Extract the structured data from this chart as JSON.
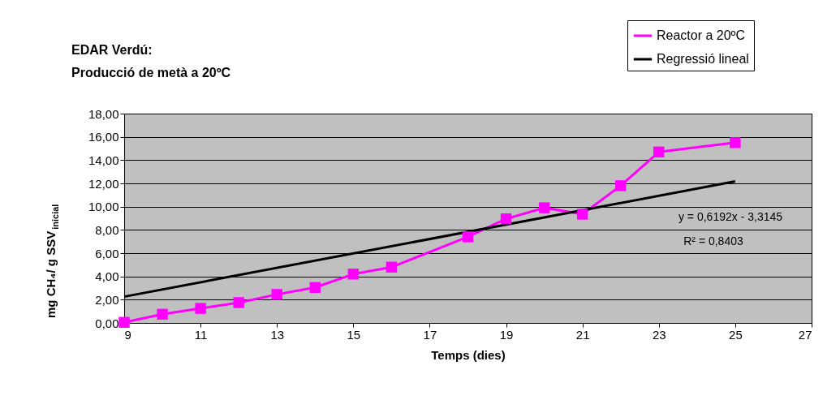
{
  "chart_data": {
    "type": "line",
    "title": [
      "EDAR Verdú:",
      "Producció de metà a 20ºC"
    ],
    "xlabel": "Temps (dies)",
    "ylabel": "mg CH₄/ g SSV$_{inicial}$",
    "x": [
      9,
      10,
      11,
      12,
      13,
      14,
      15,
      16,
      18,
      19,
      20,
      21,
      22,
      23,
      25
    ],
    "series": [
      {
        "name": "Reactor a 20ºC",
        "color": "#ff00ff",
        "marker": "square",
        "values": [
          0.05,
          0.75,
          1.25,
          1.75,
          2.45,
          3.05,
          4.2,
          4.8,
          7.4,
          8.95,
          9.9,
          9.35,
          11.8,
          14.7,
          15.5
        ]
      },
      {
        "name": "Regressió lineal",
        "color": "#000000",
        "marker": "none",
        "x": [
          9,
          25
        ],
        "values": [
          2.26,
          12.17
        ]
      }
    ],
    "xlim": [
      9,
      27
    ],
    "xticks": [
      9,
      11,
      13,
      15,
      17,
      19,
      21,
      23,
      25,
      27
    ],
    "ylim": [
      0,
      18
    ],
    "yticks": [
      {
        "value": 0,
        "label": "0,00"
      },
      {
        "value": 2,
        "label": "2,00"
      },
      {
        "value": 4,
        "label": "4,00"
      },
      {
        "value": 6,
        "label": "6,00"
      },
      {
        "value": 8,
        "label": "8,00"
      },
      {
        "value": 10,
        "label": "10,00"
      },
      {
        "value": 12,
        "label": "12,00"
      },
      {
        "value": 14,
        "label": "14,00"
      },
      {
        "value": 16,
        "label": "16,00"
      },
      {
        "value": 18,
        "label": "18,00"
      }
    ],
    "grid": "y",
    "legend": "top right",
    "line_style": "solid",
    "annotations": [
      "y = 0,6192x - 3,3145",
      "R² = 0,8403"
    ]
  }
}
